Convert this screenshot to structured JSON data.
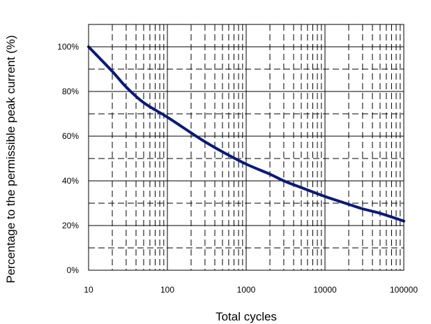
{
  "chart_data": {
    "type": "line",
    "xlabel": "Total cycles",
    "ylabel": "Percentage to the permissible peak current (%)",
    "x_scale": "log",
    "xlim": [
      10,
      100000
    ],
    "ylim": [
      0,
      110
    ],
    "x_ticks": [
      10,
      100,
      1000,
      10000,
      100000
    ],
    "x_tick_labels": [
      "10",
      "100",
      "1000",
      "10000",
      "100000"
    ],
    "y_ticks": [
      0,
      20,
      40,
      60,
      80,
      100
    ],
    "y_tick_labels": [
      "0%",
      "20%",
      "40%",
      "60%",
      "80%",
      "100%"
    ],
    "grid": true,
    "series_color": "#0a1a7a",
    "series": [
      {
        "x": [
          10,
          20,
          30,
          50,
          100,
          200,
          300,
          500,
          1000,
          2000,
          3000,
          5000,
          10000,
          20000,
          30000,
          50000,
          100000
        ],
        "y": [
          100,
          89,
          82,
          75,
          68.5,
          61.5,
          57.5,
          53,
          47.5,
          43,
          40,
          37,
          33,
          29.5,
          27.5,
          25.5,
          22
        ]
      }
    ]
  }
}
